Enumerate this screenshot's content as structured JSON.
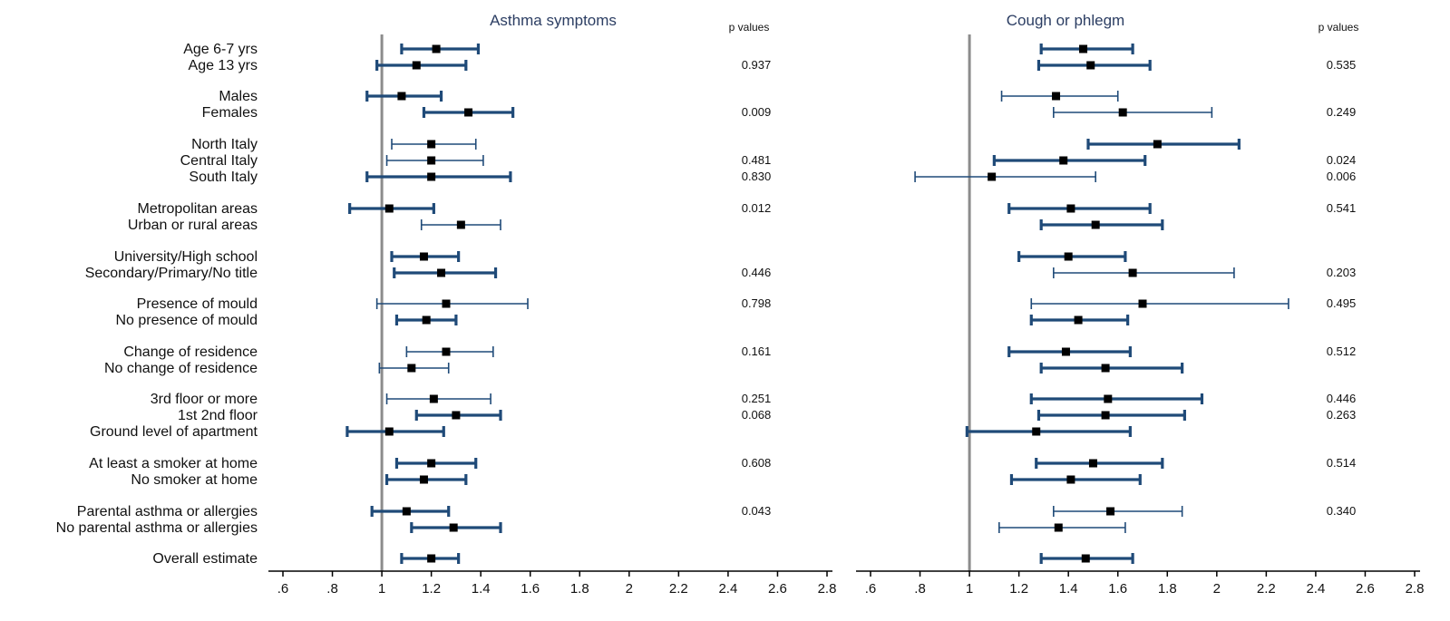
{
  "colors": {
    "ci": "#1f4a78",
    "point": "#000000",
    "refline": "#8c8c8c",
    "axis": "#000000",
    "title": "#2c3e63"
  },
  "chart_data": {
    "type": "forest",
    "rows": [
      "Age 6-7 yrs",
      "Age 13 yrs",
      "Males",
      "Females",
      "North Italy",
      "Central Italy",
      "South Italy",
      "Metropolitan areas",
      "Urban or rural areas",
      "University/High school",
      "Secondary/Primary/No title",
      "Presence of mould",
      "No presence of mould",
      "Change of residence",
      "No change of residence",
      "3rd floor or more",
      "1st 2nd floor",
      "Ground level of apartment",
      "At least a smoker at home",
      "No smoker at home",
      "Parental asthma or allergies",
      "No parental asthma or allergies",
      "Overall estimate"
    ],
    "x_ticks": [
      ".6",
      ".8",
      "1",
      "1.2",
      "1.4",
      "1.6",
      "1.8",
      "2",
      "2.2",
      "2.4",
      "2.6",
      "2.8"
    ],
    "xlim": [
      0.6,
      2.8
    ],
    "reference_value": 1,
    "panels": [
      {
        "title": "Asthma symptoms",
        "pvalue_header": "p values",
        "estimates": [
          {
            "row": 0,
            "est": 1.22,
            "lo": 1.08,
            "hi": 1.39,
            "thick": true
          },
          {
            "row": 1,
            "est": 1.14,
            "lo": 0.98,
            "hi": 1.34,
            "thick": true
          },
          {
            "row": 2,
            "est": 1.08,
            "lo": 0.94,
            "hi": 1.24,
            "thick": true
          },
          {
            "row": 3,
            "est": 1.35,
            "lo": 1.17,
            "hi": 1.53,
            "thick": true
          },
          {
            "row": 4,
            "est": 1.2,
            "lo": 1.04,
            "hi": 1.38,
            "thick": false
          },
          {
            "row": 5,
            "est": 1.2,
            "lo": 1.02,
            "hi": 1.41,
            "thick": false
          },
          {
            "row": 6,
            "est": 1.2,
            "lo": 0.94,
            "hi": 1.52,
            "thick": true
          },
          {
            "row": 7,
            "est": 1.03,
            "lo": 0.87,
            "hi": 1.21,
            "thick": true
          },
          {
            "row": 8,
            "est": 1.32,
            "lo": 1.16,
            "hi": 1.48,
            "thick": false
          },
          {
            "row": 9,
            "est": 1.17,
            "lo": 1.04,
            "hi": 1.31,
            "thick": true
          },
          {
            "row": 10,
            "est": 1.24,
            "lo": 1.05,
            "hi": 1.46,
            "thick": true
          },
          {
            "row": 11,
            "est": 1.26,
            "lo": 0.98,
            "hi": 1.59,
            "thick": false
          },
          {
            "row": 12,
            "est": 1.18,
            "lo": 1.06,
            "hi": 1.3,
            "thick": true
          },
          {
            "row": 13,
            "est": 1.26,
            "lo": 1.1,
            "hi": 1.45,
            "thick": false
          },
          {
            "row": 14,
            "est": 1.12,
            "lo": 0.99,
            "hi": 1.27,
            "thick": false
          },
          {
            "row": 15,
            "est": 1.21,
            "lo": 1.02,
            "hi": 1.44,
            "thick": false
          },
          {
            "row": 16,
            "est": 1.3,
            "lo": 1.14,
            "hi": 1.48,
            "thick": true
          },
          {
            "row": 17,
            "est": 1.03,
            "lo": 0.86,
            "hi": 1.25,
            "thick": true
          },
          {
            "row": 18,
            "est": 1.2,
            "lo": 1.06,
            "hi": 1.38,
            "thick": true
          },
          {
            "row": 19,
            "est": 1.17,
            "lo": 1.02,
            "hi": 1.34,
            "thick": true
          },
          {
            "row": 20,
            "est": 1.1,
            "lo": 0.96,
            "hi": 1.27,
            "thick": true
          },
          {
            "row": 21,
            "est": 1.29,
            "lo": 1.12,
            "hi": 1.48,
            "thick": true
          },
          {
            "row": 22,
            "est": 1.2,
            "lo": 1.08,
            "hi": 1.31,
            "thick": true
          }
        ],
        "pvalues": [
          {
            "row": 1,
            "text": "0.937"
          },
          {
            "row": 3,
            "text": "0.009"
          },
          {
            "row": 5,
            "text": "0.481"
          },
          {
            "row": 6,
            "text": "0.830"
          },
          {
            "row": 7,
            "text": "0.012"
          },
          {
            "row": 10,
            "text": "0.446"
          },
          {
            "row": 11,
            "text": "0.798"
          },
          {
            "row": 13,
            "text": "0.161"
          },
          {
            "row": 15,
            "text": "0.251"
          },
          {
            "row": 16,
            "text": "0.068"
          },
          {
            "row": 18,
            "text": "0.608"
          },
          {
            "row": 20,
            "text": "0.043"
          }
        ]
      },
      {
        "title": "Cough or phlegm",
        "pvalue_header": "p values",
        "estimates": [
          {
            "row": 0,
            "est": 1.46,
            "lo": 1.29,
            "hi": 1.66,
            "thick": true
          },
          {
            "row": 1,
            "est": 1.49,
            "lo": 1.28,
            "hi": 1.73,
            "thick": true
          },
          {
            "row": 2,
            "est": 1.35,
            "lo": 1.13,
            "hi": 1.6,
            "thick": false
          },
          {
            "row": 3,
            "est": 1.62,
            "lo": 1.34,
            "hi": 1.98,
            "thick": false
          },
          {
            "row": 4,
            "est": 1.76,
            "lo": 1.48,
            "hi": 2.09,
            "thick": true
          },
          {
            "row": 5,
            "est": 1.38,
            "lo": 1.1,
            "hi": 1.71,
            "thick": true
          },
          {
            "row": 6,
            "est": 1.09,
            "lo": 0.78,
            "hi": 1.51,
            "thick": false
          },
          {
            "row": 7,
            "est": 1.41,
            "lo": 1.16,
            "hi": 1.73,
            "thick": true
          },
          {
            "row": 8,
            "est": 1.51,
            "lo": 1.29,
            "hi": 1.78,
            "thick": true
          },
          {
            "row": 9,
            "est": 1.4,
            "lo": 1.2,
            "hi": 1.63,
            "thick": true
          },
          {
            "row": 10,
            "est": 1.66,
            "lo": 1.34,
            "hi": 2.07,
            "thick": false
          },
          {
            "row": 11,
            "est": 1.7,
            "lo": 1.25,
            "hi": 2.29,
            "thick": false
          },
          {
            "row": 12,
            "est": 1.44,
            "lo": 1.25,
            "hi": 1.64,
            "thick": true
          },
          {
            "row": 13,
            "est": 1.39,
            "lo": 1.16,
            "hi": 1.65,
            "thick": true
          },
          {
            "row": 14,
            "est": 1.55,
            "lo": 1.29,
            "hi": 1.86,
            "thick": true
          },
          {
            "row": 15,
            "est": 1.56,
            "lo": 1.25,
            "hi": 1.94,
            "thick": true
          },
          {
            "row": 16,
            "est": 1.55,
            "lo": 1.28,
            "hi": 1.87,
            "thick": true
          },
          {
            "row": 17,
            "est": 1.27,
            "lo": 0.99,
            "hi": 1.65,
            "thick": true
          },
          {
            "row": 18,
            "est": 1.5,
            "lo": 1.27,
            "hi": 1.78,
            "thick": true
          },
          {
            "row": 19,
            "est": 1.41,
            "lo": 1.17,
            "hi": 1.69,
            "thick": true
          },
          {
            "row": 20,
            "est": 1.57,
            "lo": 1.34,
            "hi": 1.86,
            "thick": false
          },
          {
            "row": 21,
            "est": 1.36,
            "lo": 1.12,
            "hi": 1.63,
            "thick": false
          },
          {
            "row": 22,
            "est": 1.47,
            "lo": 1.29,
            "hi": 1.66,
            "thick": true
          }
        ],
        "pvalues": [
          {
            "row": 1,
            "text": "0.535"
          },
          {
            "row": 3,
            "text": "0.249"
          },
          {
            "row": 5,
            "text": "0.024"
          },
          {
            "row": 6,
            "text": "0.006"
          },
          {
            "row": 7,
            "text": "0.541"
          },
          {
            "row": 10,
            "text": "0.203"
          },
          {
            "row": 11,
            "text": "0.495"
          },
          {
            "row": 13,
            "text": "0.512"
          },
          {
            "row": 15,
            "text": "0.446"
          },
          {
            "row": 16,
            "text": "0.263"
          },
          {
            "row": 18,
            "text": "0.514"
          },
          {
            "row": 20,
            "text": "0.340"
          }
        ]
      }
    ]
  }
}
